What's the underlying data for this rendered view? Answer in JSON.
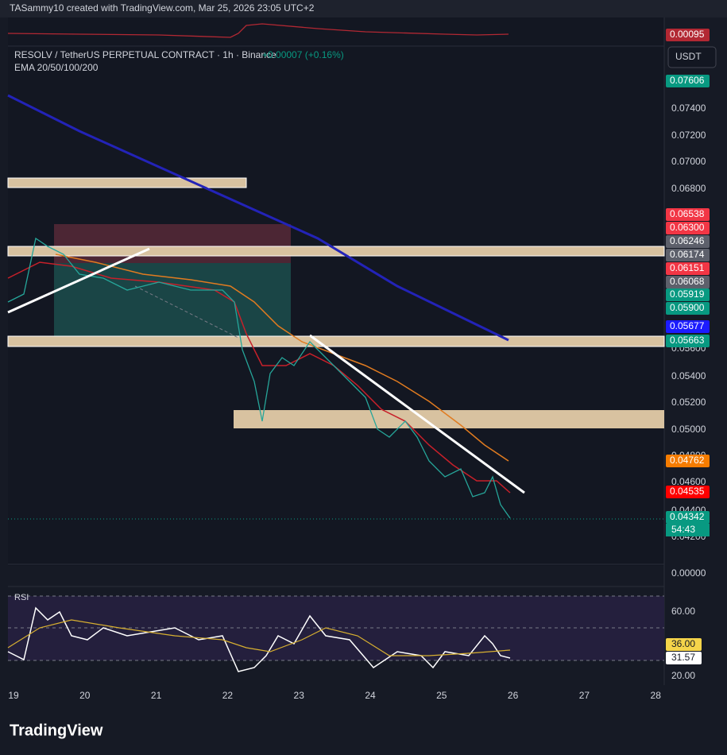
{
  "header": {
    "credit": "TASammy10 created with TradingView.com, Mar 25, 2026 23:05 UTC+2",
    "symbol": "RESOLV / TetherUS PERPETUAL CONTRACT · 1h · Binance",
    "change": "+0.00007 (+0.16%)",
    "indicator": "EMA 20/50/100/200",
    "currency": "USDT",
    "top_indicator_value": "0.00095"
  },
  "price_axis": {
    "ticks": [
      "0.07400",
      "0.07200",
      "0.07000",
      "0.06800",
      "0.05600",
      "0.05400",
      "0.05200",
      "0.05000",
      "0.04800",
      "0.04600",
      "0.04400",
      "0.04200"
    ],
    "zero": "0.00000"
  },
  "price_tags": [
    {
      "label": "0.07606",
      "color": "#089981"
    },
    {
      "label": "0.06538",
      "color": "#f23645"
    },
    {
      "label": "0.06300",
      "color": "#f23645"
    },
    {
      "label": "0.06246",
      "color": "#5d606b"
    },
    {
      "label": "0.06174",
      "color": "#5d606b"
    },
    {
      "label": "0.06151",
      "color": "#f23645"
    },
    {
      "label": "0.06068",
      "color": "#5d606b"
    },
    {
      "label": "0.05919",
      "color": "#089981"
    },
    {
      "label": "0.05900",
      "color": "#089981"
    },
    {
      "label": "0.05677",
      "color": "#1c1cff"
    },
    {
      "label": "0.05663",
      "color": "#089981"
    },
    {
      "label": "0.04762",
      "color": "#f57c00"
    },
    {
      "label": "0.04535",
      "color": "#ff0000"
    },
    {
      "label": "0.04342",
      "color": "#089981"
    }
  ],
  "countdown": "54:43",
  "time_axis": [
    "19",
    "20",
    "21",
    "22",
    "23",
    "24",
    "25",
    "26",
    "27",
    "28"
  ],
  "rsi": {
    "title": "RSI",
    "ticks": [
      "60.00",
      "20.00"
    ],
    "tags": [
      {
        "label": "36.00",
        "color": "#f5d44a"
      },
      {
        "label": "31.57",
        "color": "#ffffff"
      }
    ]
  },
  "logo": "TradingView"
}
